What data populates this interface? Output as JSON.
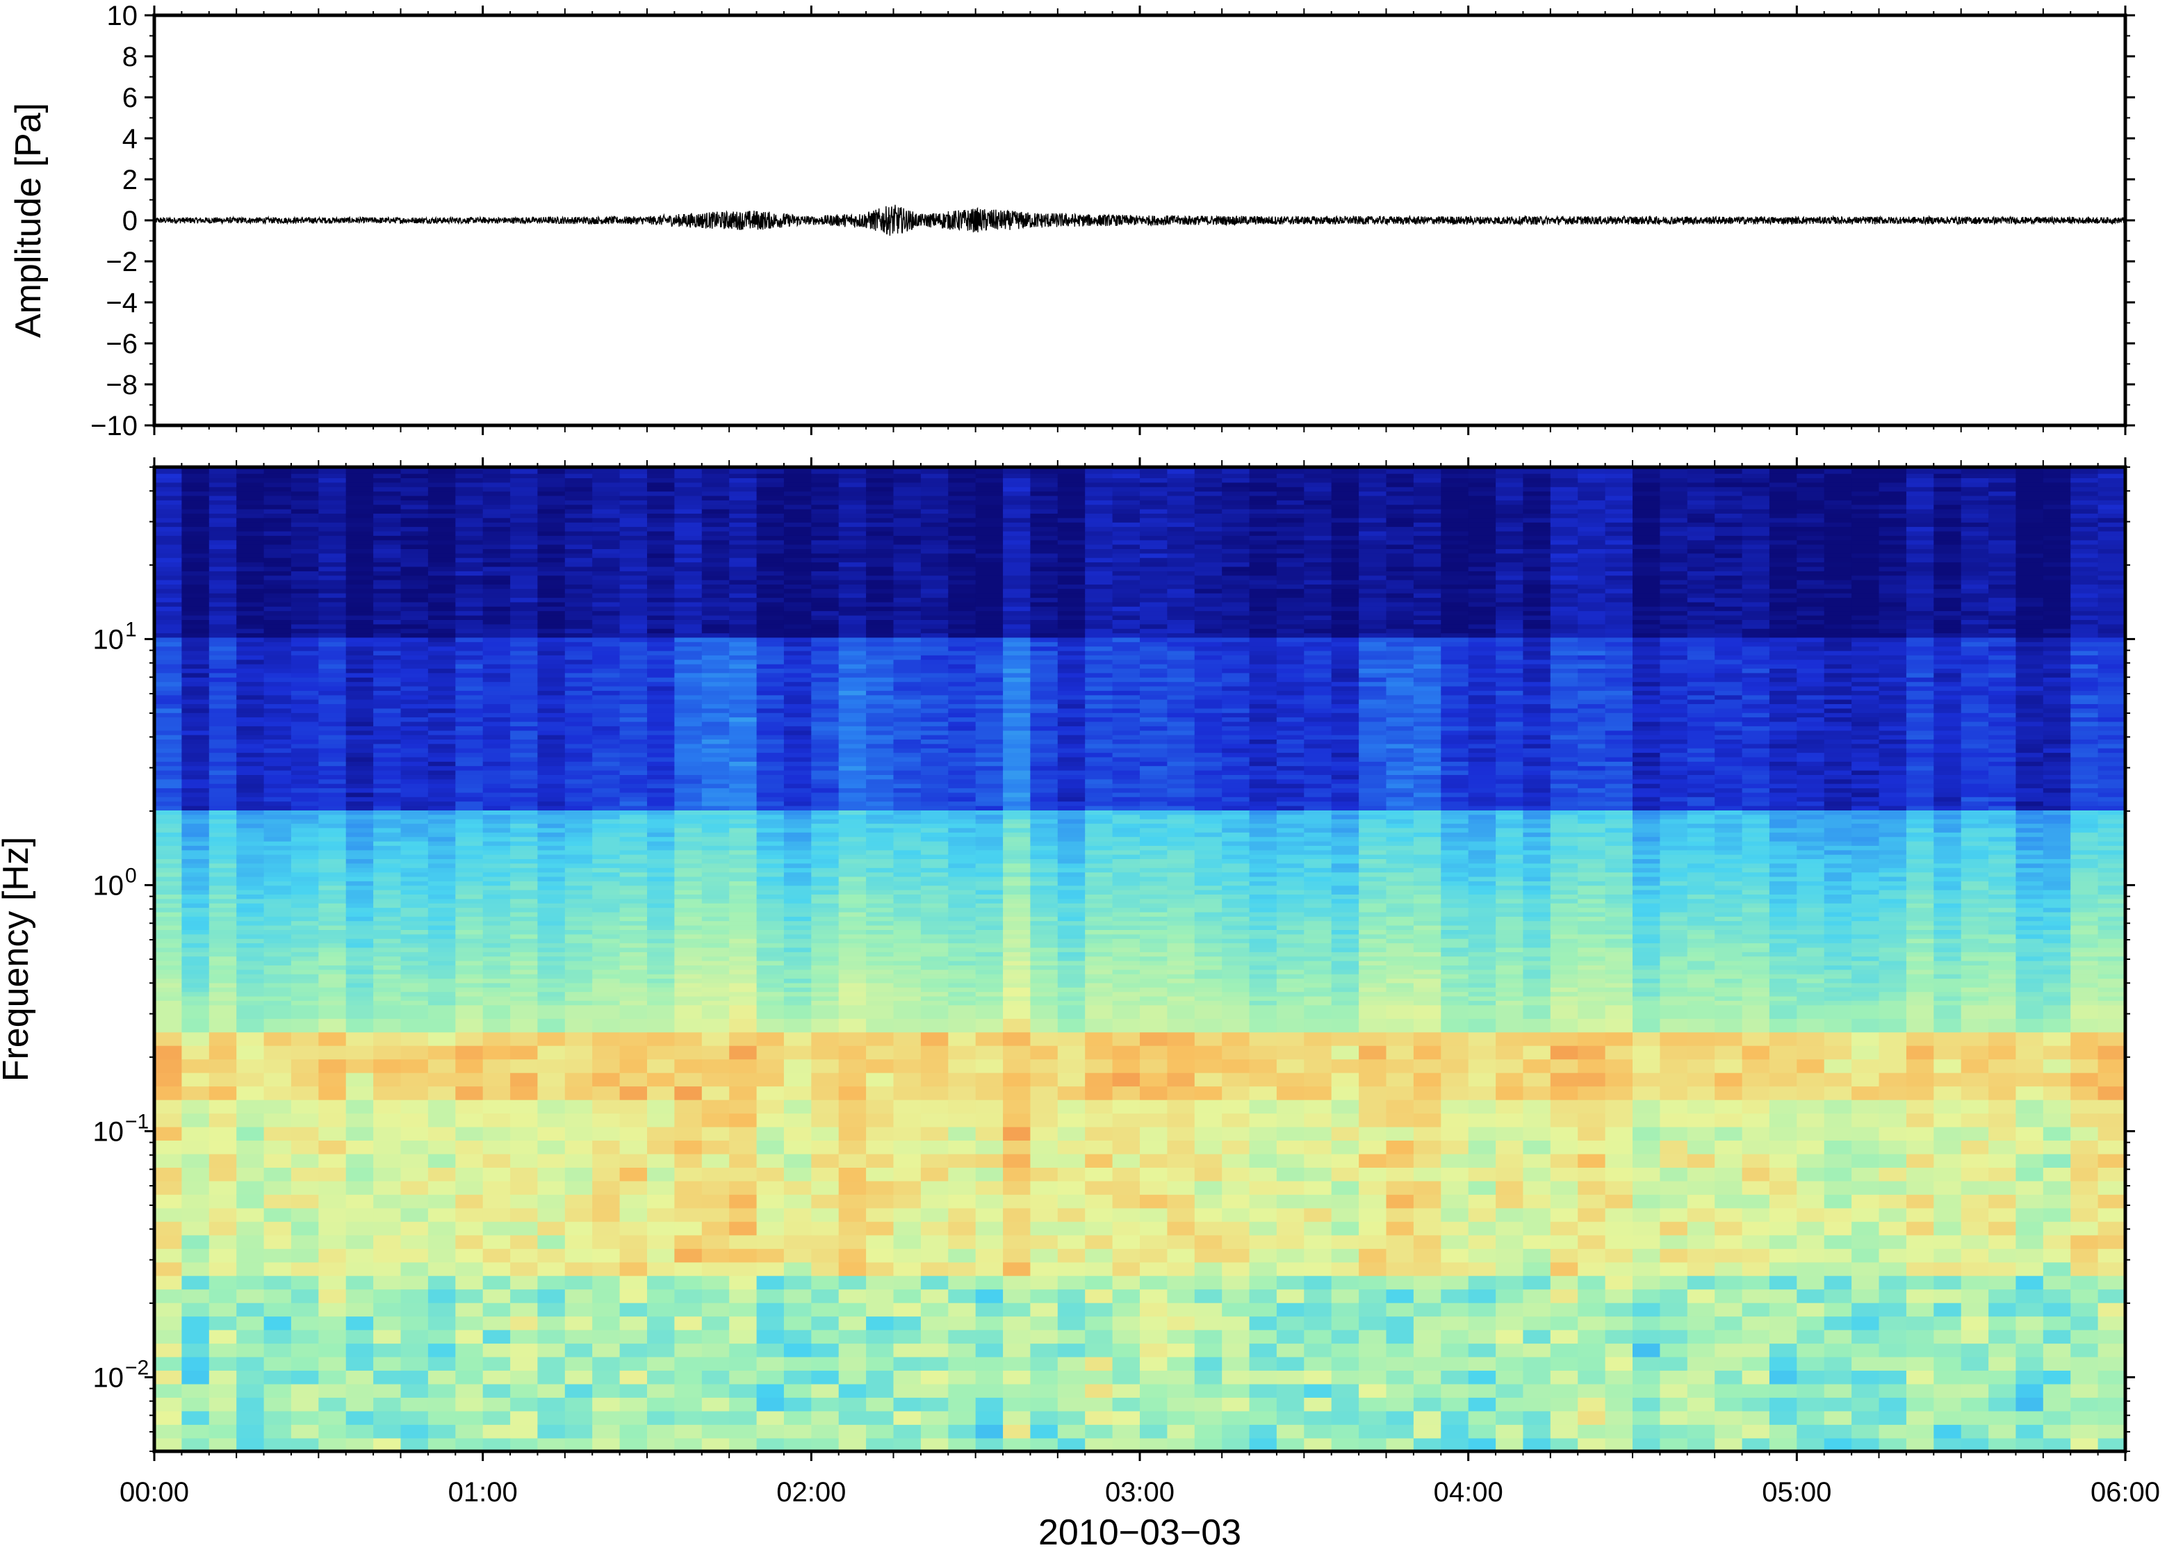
{
  "chart_data": [
    {
      "type": "line",
      "panel": "waveform",
      "ylabel": "Amplitude [Pa]",
      "ylim": [
        -10,
        10
      ],
      "y_ticks": [
        -10,
        -8,
        -6,
        -4,
        -2,
        0,
        2,
        4,
        6,
        8,
        10
      ],
      "y_tick_labels": [
        "−10",
        "−8",
        "−6",
        "−4",
        "−2",
        "0",
        "2",
        "4",
        "6",
        "8",
        "10"
      ],
      "x_range": [
        "00:00",
        "06:00"
      ],
      "baseline": 0,
      "line_color": "#000000",
      "envelope": {
        "x": [
          "00:00",
          "00:30",
          "01:00",
          "01:30",
          "01:40",
          "01:50",
          "02:00",
          "02:10",
          "02:15",
          "02:20",
          "02:30",
          "02:40",
          "02:50",
          "03:00",
          "03:30",
          "04:00",
          "04:30",
          "05:00",
          "05:30",
          "06:00"
        ],
        "amplitude": [
          0.15,
          0.15,
          0.15,
          0.2,
          0.4,
          0.5,
          0.2,
          0.4,
          0.8,
          0.3,
          0.6,
          0.4,
          0.3,
          0.25,
          0.2,
          0.2,
          0.2,
          0.18,
          0.18,
          0.15
        ]
      }
    },
    {
      "type": "heatmap",
      "panel": "spectrogram",
      "ylabel": "Frequency [Hz]",
      "xlabel": "2010−03−03",
      "y_scale": "log",
      "ylim": [
        0.005,
        50
      ],
      "y_ticks": [
        0.01,
        0.1,
        1,
        10
      ],
      "y_tick_base": "10",
      "y_tick_exponents": [
        "−2",
        "−1",
        "0",
        "1"
      ],
      "x_ticks": [
        "00:00",
        "01:00",
        "02:00",
        "03:00",
        "04:00",
        "05:00",
        "06:00"
      ],
      "x_range": [
        "00:00",
        "06:00"
      ],
      "colormap": "rainbow (blue-cyan-yellow-orange)",
      "colormap_stops": [
        "#0b0b7a",
        "#1a2fd6",
        "#2a7ef0",
        "#49d3f0",
        "#9ef0b8",
        "#e8f59a",
        "#f8c060",
        "#f0703a"
      ],
      "features": {
        "microseism_band_hz": [
          0.15,
          0.25
        ],
        "energetic_times": [
          "01:45",
          "02:10",
          "02:35",
          "03:50"
        ]
      }
    }
  ]
}
